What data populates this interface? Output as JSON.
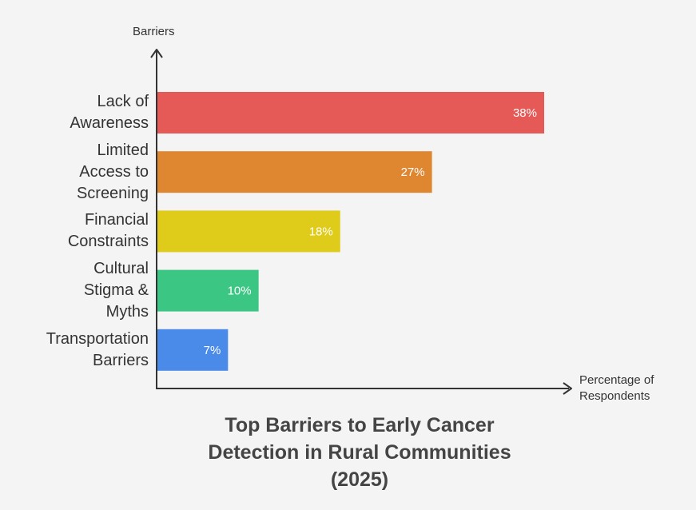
{
  "chart_data": {
    "type": "bar",
    "orientation": "horizontal",
    "title": [
      "Top Barriers to Early Cancer",
      "Detection in Rural Communities",
      "(2025)"
    ],
    "ylabel": "Barriers",
    "xlabel": [
      "Percentage of",
      "Respondents"
    ],
    "categories": [
      [
        "Lack of",
        "Awareness"
      ],
      [
        "Limited",
        "Access to",
        "Screening"
      ],
      [
        "Financial",
        "Constraints"
      ],
      [
        "Cultural",
        "Stigma &",
        "Myths"
      ],
      [
        "Transportation",
        "Barriers"
      ]
    ],
    "values": [
      38,
      27,
      18,
      10,
      7
    ],
    "value_labels": [
      "38%",
      "27%",
      "18%",
      "10%",
      "7%"
    ],
    "colors": [
      "#e55a57",
      "#df8631",
      "#dfcb1a",
      "#3cc683",
      "#4a8ae8"
    ],
    "xlim": [
      0,
      40
    ],
    "grid": false,
    "legend": "none"
  }
}
